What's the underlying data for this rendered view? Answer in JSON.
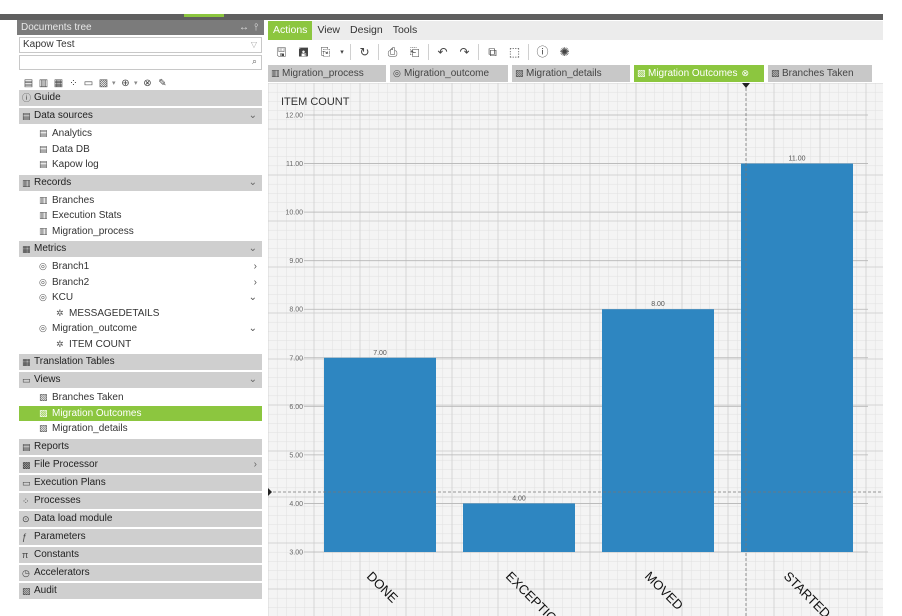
{
  "panel": {
    "title": "Documents tree",
    "project": "Kapow Test",
    "search_value": ""
  },
  "sections": [
    {
      "label": "Guide",
      "icon": "info-icon",
      "items": []
    },
    {
      "label": "Data sources",
      "icon": "database-icon",
      "expanded": true,
      "items": [
        {
          "label": "Analytics",
          "level": 1,
          "icon": "database-icon"
        },
        {
          "label": "Data DB",
          "level": 1,
          "icon": "database-icon"
        },
        {
          "label": "Kapow log",
          "level": 1,
          "icon": "database-icon"
        }
      ]
    },
    {
      "label": "Records",
      "icon": "records-icon",
      "expanded": true,
      "items": [
        {
          "label": "Branches",
          "level": 1,
          "icon": "record-icon"
        },
        {
          "label": "Execution Stats",
          "level": 1,
          "icon": "record-icon"
        },
        {
          "label": "Migration_process",
          "level": 1,
          "icon": "record-icon"
        }
      ]
    },
    {
      "label": "Metrics",
      "icon": "metrics-icon",
      "expanded": true,
      "items": [
        {
          "label": "Branch1",
          "level": 1,
          "icon": "metric-icon",
          "chev": "›"
        },
        {
          "label": "Branch2",
          "level": 1,
          "icon": "metric-icon",
          "chev": "›"
        },
        {
          "label": "KCU",
          "level": 1,
          "icon": "metric-icon",
          "chev": "⌄"
        },
        {
          "label": "MESSAGEDETAILS",
          "level": 2,
          "icon": "gear-icon"
        },
        {
          "label": "Migration_outcome",
          "level": 1,
          "icon": "metric-icon",
          "chev": "⌄"
        },
        {
          "label": "ITEM COUNT",
          "level": 2,
          "icon": "gear-icon"
        }
      ]
    },
    {
      "label": "Translation Tables",
      "icon": "table-icon",
      "items": []
    },
    {
      "label": "Views",
      "icon": "views-icon",
      "expanded": true,
      "items": [
        {
          "label": "Branches Taken",
          "level": 1,
          "icon": "view-icon"
        },
        {
          "label": "Migration Outcomes",
          "level": 1,
          "icon": "view-icon",
          "selected": true
        },
        {
          "label": "Migration_details",
          "level": 1,
          "icon": "view-icon"
        }
      ]
    },
    {
      "label": "Reports",
      "icon": "report-icon",
      "items": []
    },
    {
      "label": "File Processor",
      "icon": "file-processor-icon",
      "chev": "›",
      "items": []
    },
    {
      "label": "Execution Plans",
      "icon": "plan-icon",
      "items": []
    },
    {
      "label": "Processes",
      "icon": "process-icon",
      "items": []
    },
    {
      "label": "Data load module",
      "icon": "load-icon",
      "items": []
    },
    {
      "label": "Parameters",
      "icon": "parameters-icon",
      "items": []
    },
    {
      "label": "Constants",
      "icon": "pi-icon",
      "items": []
    },
    {
      "label": "Accelerators",
      "icon": "accelerator-icon",
      "items": []
    },
    {
      "label": "Audit",
      "icon": "audit-icon",
      "items": []
    }
  ],
  "menu": [
    "Actions",
    "View",
    "Design",
    "Tools"
  ],
  "tabs": [
    {
      "label": "Migration_process",
      "icon": "record-icon"
    },
    {
      "label": "Migration_outcome",
      "icon": "metric-icon"
    },
    {
      "label": "Migration_details",
      "icon": "view-icon"
    },
    {
      "label": "Migration Outcomes",
      "icon": "view-icon",
      "active": true,
      "closable": true
    },
    {
      "label": "Branches Taken",
      "icon": "view-icon"
    }
  ],
  "colors": {
    "accent": "#8cc63f",
    "bar": "#2e86c1",
    "section_bg": "#cfcfcf"
  },
  "chart_data": {
    "type": "bar",
    "ylabel": "ITEM COUNT",
    "categories": [
      "DONE",
      "EXCEPTION",
      "MOVED",
      "STARTED"
    ],
    "values": [
      7,
      4,
      8,
      11
    ],
    "value_labels": [
      "7.00",
      "4.00",
      "8.00",
      "11.00"
    ],
    "ylim": [
      3,
      12
    ],
    "yticks": [
      "3.00",
      "4.00",
      "5.00",
      "6.00",
      "7.00",
      "8.00",
      "9.00",
      "10.00",
      "11.00",
      "12.00"
    ],
    "grid": true
  }
}
